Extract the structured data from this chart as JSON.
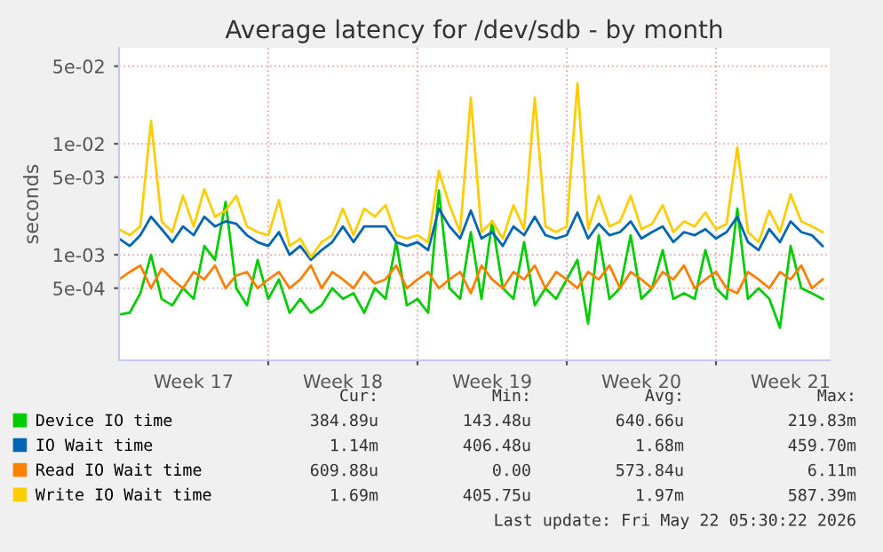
{
  "chart_data": {
    "type": "line",
    "title": "Average latency for /dev/sdb - by month",
    "ylabel": "seconds",
    "log": true,
    "grid": true,
    "legend": "bottom",
    "xlim": [
      "2026-04-20T00:00",
      "2026-05-23T08:00"
    ],
    "xticks": [
      {
        "value": "2026-04-23T12:00",
        "label": "Week 17"
      },
      {
        "value": "2026-04-27T00:00",
        "label": null
      },
      {
        "value": "2026-04-30T12:00",
        "label": "Week 18"
      },
      {
        "value": "2026-05-04T00:00",
        "label": null
      },
      {
        "value": "2026-05-07T12:00",
        "label": "Week 19"
      },
      {
        "value": "2026-05-11T00:00",
        "label": null
      },
      {
        "value": "2026-05-14T12:00",
        "label": "Week 20"
      },
      {
        "value": "2026-05-18T00:00",
        "label": null
      },
      {
        "value": "2026-05-21T12:00",
        "label": "Week 21"
      }
    ],
    "ylim": [
      0.000112,
      0.073
    ],
    "yticks": [
      {
        "value": 0.0005,
        "label": "5e-04"
      },
      {
        "value": 0.001,
        "label": "1e-03"
      },
      {
        "value": 0.005,
        "label": "5e-03"
      },
      {
        "value": 0.01,
        "label": "1e-02"
      },
      {
        "value": 0.05,
        "label": "5e-02"
      }
    ],
    "x": [
      "2026-04-20T00:00",
      "2026-04-20T12:00",
      "2026-04-21T00:00",
      "2026-04-21T12:00",
      "2026-04-22T00:00",
      "2026-04-22T12:00",
      "2026-04-23T00:00",
      "2026-04-23T12:00",
      "2026-04-24T00:00",
      "2026-04-24T12:00",
      "2026-04-25T00:00",
      "2026-04-25T12:00",
      "2026-04-26T00:00",
      "2026-04-26T12:00",
      "2026-04-27T00:00",
      "2026-04-27T12:00",
      "2026-04-28T00:00",
      "2026-04-28T12:00",
      "2026-04-29T00:00",
      "2026-04-29T12:00",
      "2026-04-30T00:00",
      "2026-04-30T12:00",
      "2026-05-01T00:00",
      "2026-05-01T12:00",
      "2026-05-02T00:00",
      "2026-05-02T12:00",
      "2026-05-03T00:00",
      "2026-05-03T12:00",
      "2026-05-04T00:00",
      "2026-05-04T12:00",
      "2026-05-05T00:00",
      "2026-05-05T12:00",
      "2026-05-06T00:00",
      "2026-05-06T12:00",
      "2026-05-07T00:00",
      "2026-05-07T12:00",
      "2026-05-08T00:00",
      "2026-05-08T12:00",
      "2026-05-09T00:00",
      "2026-05-09T12:00",
      "2026-05-10T00:00",
      "2026-05-10T12:00",
      "2026-05-11T00:00",
      "2026-05-11T12:00",
      "2026-05-12T00:00",
      "2026-05-12T12:00",
      "2026-05-13T00:00",
      "2026-05-13T12:00",
      "2026-05-14T00:00",
      "2026-05-14T12:00",
      "2026-05-15T00:00",
      "2026-05-15T12:00",
      "2026-05-16T00:00",
      "2026-05-16T12:00",
      "2026-05-17T00:00",
      "2026-05-17T12:00",
      "2026-05-18T00:00",
      "2026-05-18T12:00",
      "2026-05-19T00:00",
      "2026-05-19T12:00",
      "2026-05-20T00:00",
      "2026-05-20T12:00",
      "2026-05-21T00:00",
      "2026-05-21T12:00",
      "2026-05-22T00:00",
      "2026-05-22T12:00",
      "2026-05-23T00:00"
    ],
    "series": [
      {
        "name": "Device IO time",
        "color": "#00cc00",
        "values": [
          0.00029,
          0.0003,
          0.00045,
          0.001,
          0.0004,
          0.00035,
          0.0005,
          0.0004,
          0.0012,
          0.0009,
          0.003,
          0.0005,
          0.00035,
          0.0009,
          0.0004,
          0.0006,
          0.0003,
          0.0004,
          0.0003,
          0.00035,
          0.0005,
          0.0004,
          0.00045,
          0.0003,
          0.0005,
          0.0004,
          0.0013,
          0.00035,
          0.0004,
          0.0003,
          0.0038,
          0.0005,
          0.0004,
          0.0016,
          0.0004,
          0.002,
          0.0005,
          0.0004,
          0.0013,
          0.00035,
          0.0005,
          0.0004,
          0.0006,
          0.0009,
          0.00024,
          0.0015,
          0.0004,
          0.0005,
          0.0015,
          0.0004,
          0.0005,
          0.0011,
          0.0004,
          0.00045,
          0.0004,
          0.0011,
          0.0005,
          0.0004,
          0.0026,
          0.0004,
          0.0005,
          0.0004,
          0.00022,
          0.0012,
          0.0005,
          0.00045,
          0.0004
        ]
      },
      {
        "name": "IO Wait time",
        "color": "#0066b3",
        "values": [
          0.0014,
          0.0012,
          0.0015,
          0.0022,
          0.0017,
          0.0013,
          0.0018,
          0.0015,
          0.0022,
          0.0018,
          0.002,
          0.0019,
          0.0015,
          0.0013,
          0.0012,
          0.0016,
          0.001,
          0.0012,
          0.0009,
          0.0011,
          0.0013,
          0.0018,
          0.0013,
          0.0018,
          0.0018,
          0.0018,
          0.0013,
          0.0012,
          0.0013,
          0.0011,
          0.0026,
          0.0018,
          0.0014,
          0.0025,
          0.0014,
          0.0016,
          0.0012,
          0.0018,
          0.0015,
          0.0022,
          0.0015,
          0.0014,
          0.0015,
          0.0024,
          0.0014,
          0.0019,
          0.0015,
          0.0016,
          0.002,
          0.0014,
          0.0016,
          0.0018,
          0.0013,
          0.0016,
          0.0015,
          0.0017,
          0.0014,
          0.0016,
          0.0022,
          0.0013,
          0.0011,
          0.0017,
          0.0013,
          0.002,
          0.0016,
          0.0015,
          0.0012
        ]
      },
      {
        "name": "Read IO Wait time",
        "color": "#ff8000",
        "values": [
          0.0006,
          0.0007,
          0.0008,
          0.0005,
          0.00075,
          0.0006,
          0.0005,
          0.0007,
          0.0006,
          0.0008,
          0.0005,
          0.00065,
          0.0007,
          0.0005,
          0.0006,
          0.0007,
          0.0005,
          0.0006,
          0.0008,
          0.0005,
          0.0007,
          0.0006,
          0.0005,
          0.0007,
          0.00055,
          0.0006,
          0.0008,
          0.0005,
          0.0006,
          0.0007,
          0.0005,
          0.0006,
          0.0007,
          0.00045,
          0.0008,
          0.0006,
          0.0005,
          0.0007,
          0.0006,
          0.0008,
          0.0005,
          0.0007,
          0.0006,
          0.0005,
          0.0007,
          0.0006,
          0.0008,
          0.0005,
          0.0007,
          0.0006,
          0.0005,
          0.0007,
          0.0006,
          0.0008,
          0.0005,
          0.0006,
          0.0007,
          0.0005,
          0.00045,
          0.0007,
          0.0006,
          0.0005,
          0.0007,
          0.0006,
          0.0008,
          0.0005,
          0.0006
        ]
      },
      {
        "name": "Write IO Wait time",
        "color": "#ffcc00",
        "values": [
          0.0017,
          0.0015,
          0.0018,
          0.016,
          0.002,
          0.0016,
          0.0034,
          0.0018,
          0.0039,
          0.0022,
          0.0025,
          0.0034,
          0.0018,
          0.0016,
          0.0015,
          0.0031,
          0.0012,
          0.0014,
          0.00095,
          0.0013,
          0.0015,
          0.0026,
          0.0015,
          0.0026,
          0.0022,
          0.0028,
          0.0015,
          0.0014,
          0.0015,
          0.0013,
          0.0057,
          0.0028,
          0.0016,
          0.026,
          0.0016,
          0.002,
          0.0014,
          0.0028,
          0.0017,
          0.026,
          0.0018,
          0.0016,
          0.0018,
          0.035,
          0.0017,
          0.0034,
          0.0018,
          0.002,
          0.0034,
          0.0017,
          0.0019,
          0.0028,
          0.0016,
          0.002,
          0.0018,
          0.0024,
          0.0017,
          0.0019,
          0.0093,
          0.0016,
          0.0013,
          0.0025,
          0.0016,
          0.0035,
          0.002,
          0.0018,
          0.0016
        ]
      }
    ],
    "annotations": [
      "Cur:",
      "Min:",
      "Avg:",
      "Max:",
      "384.89u",
      "143.48u",
      "640.66u",
      "219.83m",
      "1.14m",
      "406.48u",
      "1.68m",
      "459.70m",
      "609.88u",
      "0.00",
      "573.84u",
      "6.11m",
      "1.69m",
      "405.75u",
      "1.97m",
      "587.39m",
      "Last update: Fri May 22 05:30:22 2026"
    ]
  }
}
